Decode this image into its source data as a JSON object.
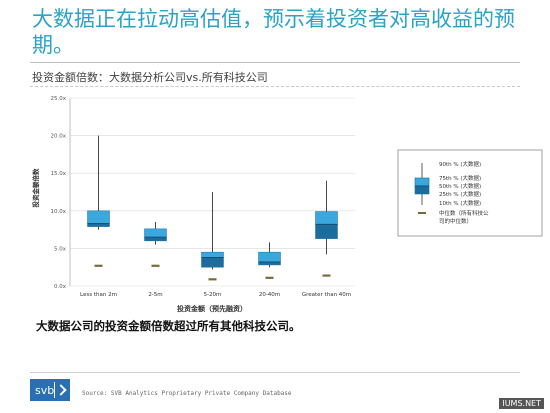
{
  "page": {
    "title": "大数据正在拉动高估值，预示着投资者对高收益的预期。",
    "subtitle": "投资金额倍数：大数据分析公司vs.所有科技公司",
    "caption": "大数据公司的投资金额倍数超过所有其他科技公司。",
    "source": "Source: SVB Analytics Proprietary Private Company Database",
    "logo_text": "svb",
    "watermark": "IUMS.NET"
  },
  "legend": {
    "p90": "90th % (大数据)",
    "p75": "75th % (大数据)",
    "p50": "50th % (大数据)",
    "p25": "25th % (大数据)",
    "p10": "10th % (大数据)",
    "median_all": "中位数（所有科技公司的中位数）"
  },
  "colors": {
    "title": "#2aa3c7",
    "box_light": "#3aa8dd",
    "box_dark": "#1c6c9c",
    "median_all": "#7a6a3a"
  },
  "chart_data": {
    "type": "box",
    "xlabel": "投资金额（预先融资）",
    "ylabel": "投资金额倍数",
    "ylim": [
      0,
      25
    ],
    "yticks": [
      "0.0x",
      "5.0x",
      "10.0x",
      "15.0x",
      "20.0x",
      "25.0x"
    ],
    "ytick_values": [
      0,
      5,
      10,
      15,
      20,
      25
    ],
    "grid": true,
    "legend_position": "right",
    "categories": [
      "Less than 2m",
      "2-5m",
      "5-20m",
      "20-40m",
      "Greater than 40m"
    ],
    "series": [
      {
        "name": "大数据",
        "p10": [
          7.5,
          5.5,
          2.2,
          2.5,
          4.2
        ],
        "p25": [
          7.9,
          6.0,
          2.5,
          2.8,
          6.3
        ],
        "p50": [
          8.3,
          6.5,
          3.8,
          3.2,
          8.2
        ],
        "p75": [
          10.0,
          7.6,
          4.5,
          4.5,
          9.9
        ],
        "p90": [
          20.0,
          8.5,
          12.5,
          5.8,
          14.0
        ]
      },
      {
        "name": "所有科技公司",
        "median": [
          2.7,
          2.7,
          0.9,
          1.1,
          1.4
        ]
      }
    ]
  }
}
